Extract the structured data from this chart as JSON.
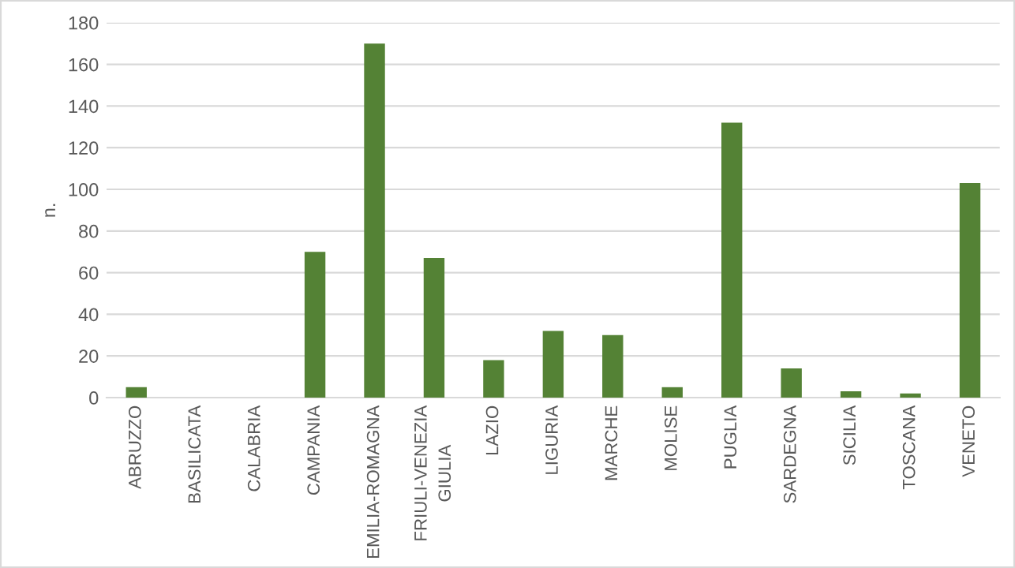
{
  "chart_data": {
    "type": "bar",
    "ylabel": "n.",
    "categories": [
      "ABRUZZO",
      "BASILICATA",
      "CALABRIA",
      "CAMPANIA",
      "EMILIA-ROMAGNA",
      "FRIULI-VENEZIA\nGIULIA",
      "LAZIO",
      "LIGURIA",
      "MARCHE",
      "MOLISE",
      "PUGLIA",
      "SARDEGNA",
      "SICILIA",
      "TOSCANA",
      "VENETO"
    ],
    "values": [
      5,
      0,
      0,
      70,
      170,
      67,
      18,
      32,
      30,
      5,
      132,
      14,
      3,
      2,
      103
    ],
    "color": "#548235",
    "ylim": [
      0,
      180
    ],
    "yticks": [
      0,
      20,
      40,
      60,
      80,
      100,
      120,
      140,
      160,
      180
    ],
    "grid": "y"
  }
}
